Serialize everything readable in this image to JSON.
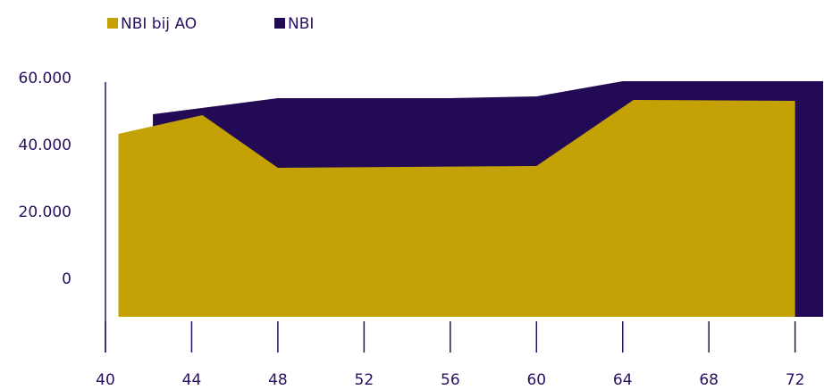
{
  "chart_data": {
    "type": "area",
    "series": [
      {
        "name": "NBI",
        "color": "#230a55",
        "x": [
          42.2,
          48,
          56,
          60,
          64,
          73.3
        ],
        "values": [
          49333,
          54133,
          54133,
          54667,
          59200,
          59200
        ]
      },
      {
        "name": "NBI bij AO",
        "color": "#c4a206",
        "x": [
          40.6,
          44.5,
          48,
          60,
          64.5,
          72
        ],
        "values": [
          43467,
          49067,
          33333,
          33867,
          53600,
          53333
        ]
      }
    ],
    "legend_order": [
      1,
      0
    ],
    "xlim": [
      40,
      73.3
    ],
    "xticks": [
      40,
      44,
      48,
      52,
      56,
      60,
      64,
      68,
      72
    ],
    "ylim": [
      -11200,
      60000
    ],
    "yticks": [
      0,
      {
        "value": 20000,
        "label": "20.000"
      },
      {
        "value": 40000,
        "label": "40.000"
      },
      {
        "value": 60000,
        "label": "60.000"
      }
    ]
  }
}
